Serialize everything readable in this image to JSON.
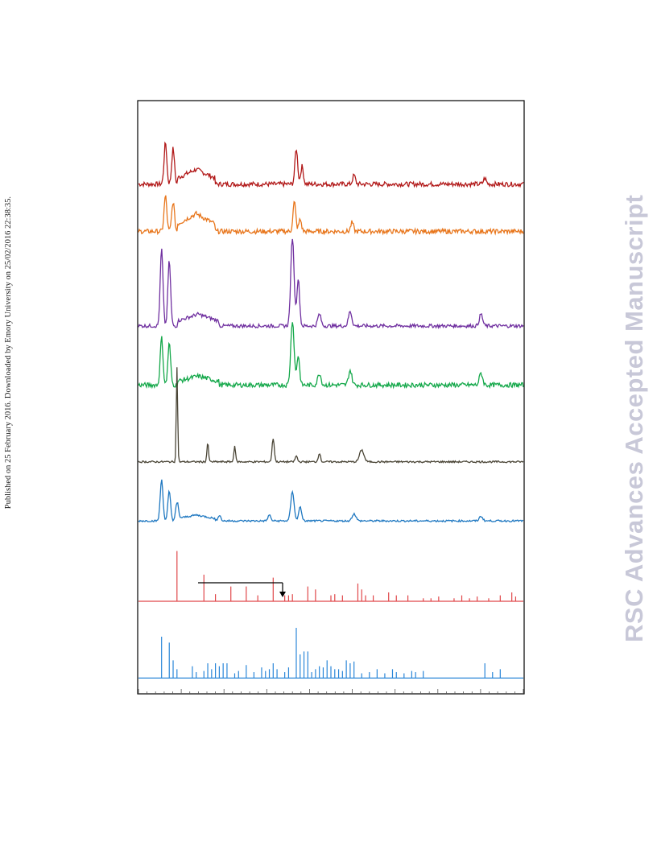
{
  "side_note": "Published on 25 February 2016. Downloaded by Emory University on 25/02/2016 22:38:35.",
  "watermark": "RSC Advances Accepted Manuscript",
  "colors": {
    "frame": "#000000",
    "trace_red": "#b21a1a",
    "trace_orange": "#e8761c",
    "trace_purple": "#7030a0",
    "trace_green": "#14a84a",
    "trace_dark": "#4a4536",
    "trace_blue": "#1f78c1",
    "sticks_red": "#e0474a",
    "sticks_blue": "#2a86d8"
  },
  "chart_data": {
    "type": "line",
    "title": "",
    "xlabel": "",
    "ylabel": "",
    "xlim": [
      0,
      100
    ],
    "series": [
      {
        "color": "trace_red",
        "base": 0.86,
        "noise": 0.004,
        "peaks": [
          [
            7,
            0.07,
            0.5
          ],
          [
            9,
            0.06,
            0.5
          ],
          [
            41,
            0.06,
            0.5
          ],
          [
            42.5,
            0.03,
            0.5
          ],
          [
            56,
            0.015,
            0.5
          ],
          [
            90,
            0.01,
            0.5
          ]
        ],
        "hump": [
          [
            10,
            20,
            0.025
          ]
        ]
      },
      {
        "color": "trace_orange",
        "base": 0.78,
        "noise": 0.004,
        "peaks": [
          [
            7,
            0.06,
            0.5
          ],
          [
            9,
            0.05,
            0.5
          ],
          [
            40.5,
            0.05,
            0.5
          ],
          [
            42,
            0.02,
            0.5
          ],
          [
            55.5,
            0.015,
            0.5
          ]
        ],
        "hump": [
          [
            10,
            20,
            0.03
          ]
        ]
      },
      {
        "color": "trace_purple",
        "base": 0.62,
        "noise": 0.003,
        "peaks": [
          [
            6,
            0.13,
            0.5
          ],
          [
            8,
            0.11,
            0.5
          ],
          [
            40,
            0.15,
            0.6
          ],
          [
            41.5,
            0.08,
            0.5
          ],
          [
            47,
            0.02,
            0.6
          ],
          [
            55,
            0.025,
            0.6
          ],
          [
            89,
            0.02,
            0.6
          ]
        ],
        "hump": [
          [
            10,
            21,
            0.02
          ]
        ]
      },
      {
        "color": "trace_green",
        "base": 0.52,
        "noise": 0.004,
        "peaks": [
          [
            6,
            0.08,
            0.5
          ],
          [
            8,
            0.07,
            0.5
          ],
          [
            40,
            0.11,
            0.6
          ],
          [
            41.5,
            0.05,
            0.5
          ],
          [
            47,
            0.02,
            0.6
          ],
          [
            55,
            0.025,
            0.6
          ],
          [
            89,
            0.02,
            0.6
          ]
        ],
        "hump": [
          [
            10,
            21,
            0.015
          ]
        ]
      },
      {
        "color": "trace_dark",
        "base": 0.39,
        "noise": 0.0015,
        "peaks": [
          [
            10,
            0.16,
            0.25
          ],
          [
            18,
            0.032,
            0.3
          ],
          [
            25,
            0.028,
            0.3
          ],
          [
            35,
            0.04,
            0.4
          ],
          [
            41,
            0.01,
            0.4
          ],
          [
            47,
            0.015,
            0.4
          ],
          [
            58,
            0.02,
            0.8
          ]
        ],
        "hump": []
      },
      {
        "color": "trace_blue",
        "base": 0.29,
        "noise": 0.0015,
        "peaks": [
          [
            6,
            0.07,
            0.5
          ],
          [
            8,
            0.05,
            0.5
          ],
          [
            10,
            0.03,
            0.5
          ],
          [
            21,
            0.01,
            0.5
          ],
          [
            34,
            0.01,
            0.5
          ],
          [
            40,
            0.05,
            0.6
          ],
          [
            42,
            0.025,
            0.5
          ],
          [
            56,
            0.012,
            0.7
          ],
          [
            89,
            0.008,
            0.6
          ]
        ],
        "hump": [
          [
            10,
            20,
            0.01
          ]
        ]
      }
    ],
    "sticks": [
      {
        "color": "sticks_red",
        "base": 0.13,
        "lines": [
          [
            10,
            0.085
          ],
          [
            17,
            0.045
          ],
          [
            20,
            0.012
          ],
          [
            24,
            0.025
          ],
          [
            28,
            0.025
          ],
          [
            31,
            0.01
          ],
          [
            35,
            0.04
          ],
          [
            38,
            0.01
          ],
          [
            39,
            0.01
          ],
          [
            40,
            0.012
          ],
          [
            44,
            0.025
          ],
          [
            46,
            0.02
          ],
          [
            50,
            0.01
          ],
          [
            51,
            0.012
          ],
          [
            53,
            0.01
          ],
          [
            57,
            0.03
          ],
          [
            58,
            0.02
          ],
          [
            59,
            0.01
          ],
          [
            61,
            0.01
          ],
          [
            65,
            0.015
          ],
          [
            67,
            0.01
          ],
          [
            70,
            0.01
          ],
          [
            74,
            0.005
          ],
          [
            76,
            0.005
          ],
          [
            78,
            0.008
          ],
          [
            82,
            0.005
          ],
          [
            84,
            0.01
          ],
          [
            86,
            0.005
          ],
          [
            88,
            0.008
          ],
          [
            91,
            0.005
          ],
          [
            94,
            0.01
          ],
          [
            97,
            0.015
          ],
          [
            98,
            0.008
          ]
        ]
      },
      {
        "color": "sticks_blue",
        "base": 0.0,
        "lines": [
          [
            6,
            0.07
          ],
          [
            8,
            0.06
          ],
          [
            9,
            0.03
          ],
          [
            10,
            0.015
          ],
          [
            14,
            0.02
          ],
          [
            15,
            0.01
          ],
          [
            17,
            0.012
          ],
          [
            18,
            0.025
          ],
          [
            19,
            0.015
          ],
          [
            20,
            0.025
          ],
          [
            21,
            0.02
          ],
          [
            22,
            0.025
          ],
          [
            23,
            0.025
          ],
          [
            25,
            0.008
          ],
          [
            26,
            0.012
          ],
          [
            28,
            0.022
          ],
          [
            30,
            0.01
          ],
          [
            32,
            0.018
          ],
          [
            33,
            0.012
          ],
          [
            34,
            0.015
          ],
          [
            35,
            0.025
          ],
          [
            36,
            0.015
          ],
          [
            38,
            0.01
          ],
          [
            39,
            0.018
          ],
          [
            41,
            0.085
          ],
          [
            42,
            0.04
          ],
          [
            43,
            0.045
          ],
          [
            44,
            0.045
          ],
          [
            45,
            0.01
          ],
          [
            46,
            0.015
          ],
          [
            47,
            0.02
          ],
          [
            48,
            0.018
          ],
          [
            49,
            0.03
          ],
          [
            50,
            0.02
          ],
          [
            51,
            0.015
          ],
          [
            52,
            0.015
          ],
          [
            53,
            0.012
          ],
          [
            54,
            0.03
          ],
          [
            55,
            0.025
          ],
          [
            56,
            0.028
          ],
          [
            58,
            0.008
          ],
          [
            60,
            0.01
          ],
          [
            62,
            0.015
          ],
          [
            64,
            0.008
          ],
          [
            66,
            0.015
          ],
          [
            67,
            0.01
          ],
          [
            69,
            0.008
          ],
          [
            71,
            0.012
          ],
          [
            72,
            0.01
          ],
          [
            74,
            0.012
          ],
          [
            90,
            0.025
          ],
          [
            92,
            0.01
          ],
          [
            94,
            0.015
          ]
        ]
      }
    ]
  }
}
